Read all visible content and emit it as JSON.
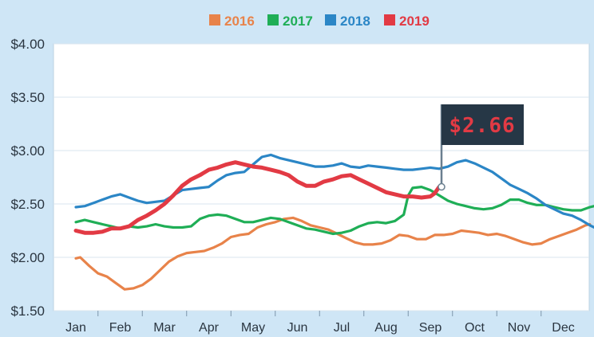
{
  "chart_data": {
    "type": "line",
    "title": "",
    "xlabel": "",
    "ylabel": "",
    "categories": [
      "Jan",
      "Feb",
      "Mar",
      "Apr",
      "May",
      "Jun",
      "Jul",
      "Aug",
      "Sep",
      "Oct",
      "Nov",
      "Dec"
    ],
    "yticks": [
      "$4.00",
      "$3.50",
      "$3.00",
      "$2.50",
      "$2.00",
      "$1.50"
    ],
    "ylim": [
      1.5,
      4.0
    ],
    "grid": "horizontal",
    "legend_position": "top-center",
    "callout": {
      "label": "$2.66",
      "series": "2019",
      "value": 2.66
    },
    "series": [
      {
        "name": "2016",
        "color": "#e8834a",
        "points": [
          [
            0,
            1.99
          ],
          [
            0.1,
            2.0
          ],
          [
            0.3,
            1.92
          ],
          [
            0.5,
            1.85
          ],
          [
            0.7,
            1.82
          ],
          [
            0.9,
            1.76
          ],
          [
            1.1,
            1.7
          ],
          [
            1.3,
            1.71
          ],
          [
            1.5,
            1.74
          ],
          [
            1.7,
            1.8
          ],
          [
            1.9,
            1.88
          ],
          [
            2.1,
            1.96
          ],
          [
            2.3,
            2.01
          ],
          [
            2.5,
            2.04
          ],
          [
            2.7,
            2.05
          ],
          [
            2.9,
            2.06
          ],
          [
            3.1,
            2.09
          ],
          [
            3.3,
            2.13
          ],
          [
            3.5,
            2.19
          ],
          [
            3.7,
            2.21
          ],
          [
            3.9,
            2.22
          ],
          [
            4.1,
            2.28
          ],
          [
            4.3,
            2.31
          ],
          [
            4.5,
            2.33
          ],
          [
            4.7,
            2.36
          ],
          [
            4.9,
            2.37
          ],
          [
            5.1,
            2.34
          ],
          [
            5.3,
            2.3
          ],
          [
            5.5,
            2.28
          ],
          [
            5.7,
            2.26
          ],
          [
            5.9,
            2.22
          ],
          [
            6.1,
            2.18
          ],
          [
            6.3,
            2.14
          ],
          [
            6.5,
            2.12
          ],
          [
            6.7,
            2.12
          ],
          [
            6.9,
            2.13
          ],
          [
            7.1,
            2.16
          ],
          [
            7.3,
            2.21
          ],
          [
            7.5,
            2.2
          ],
          [
            7.7,
            2.17
          ],
          [
            7.9,
            2.17
          ],
          [
            8.1,
            2.21
          ],
          [
            8.3,
            2.21
          ],
          [
            8.5,
            2.22
          ],
          [
            8.7,
            2.25
          ],
          [
            8.9,
            2.24
          ],
          [
            9.1,
            2.23
          ],
          [
            9.3,
            2.21
          ],
          [
            9.5,
            2.22
          ],
          [
            9.7,
            2.2
          ],
          [
            9.9,
            2.17
          ],
          [
            10.1,
            2.14
          ],
          [
            10.3,
            2.12
          ],
          [
            10.5,
            2.13
          ],
          [
            10.7,
            2.17
          ],
          [
            10.9,
            2.2
          ],
          [
            11.1,
            2.23
          ],
          [
            11.3,
            2.26
          ],
          [
            11.5,
            2.3
          ],
          [
            11.6,
            2.31
          ]
        ]
      },
      {
        "name": "2017",
        "color": "#1fae56",
        "points": [
          [
            0,
            2.33
          ],
          [
            0.2,
            2.35
          ],
          [
            0.4,
            2.33
          ],
          [
            0.6,
            2.31
          ],
          [
            0.8,
            2.29
          ],
          [
            1.0,
            2.27
          ],
          [
            1.2,
            2.29
          ],
          [
            1.4,
            2.28
          ],
          [
            1.6,
            2.29
          ],
          [
            1.8,
            2.31
          ],
          [
            2.0,
            2.29
          ],
          [
            2.2,
            2.28
          ],
          [
            2.4,
            2.28
          ],
          [
            2.6,
            2.29
          ],
          [
            2.8,
            2.36
          ],
          [
            3.0,
            2.39
          ],
          [
            3.2,
            2.4
          ],
          [
            3.4,
            2.39
          ],
          [
            3.6,
            2.36
          ],
          [
            3.8,
            2.33
          ],
          [
            4.0,
            2.33
          ],
          [
            4.2,
            2.35
          ],
          [
            4.4,
            2.37
          ],
          [
            4.6,
            2.36
          ],
          [
            4.8,
            2.33
          ],
          [
            5.0,
            2.3
          ],
          [
            5.2,
            2.27
          ],
          [
            5.4,
            2.26
          ],
          [
            5.6,
            2.24
          ],
          [
            5.8,
            2.22
          ],
          [
            6.0,
            2.23
          ],
          [
            6.2,
            2.25
          ],
          [
            6.4,
            2.29
          ],
          [
            6.6,
            2.32
          ],
          [
            6.8,
            2.33
          ],
          [
            7.0,
            2.32
          ],
          [
            7.2,
            2.34
          ],
          [
            7.4,
            2.4
          ],
          [
            7.5,
            2.58
          ],
          [
            7.6,
            2.65
          ],
          [
            7.8,
            2.66
          ],
          [
            8.0,
            2.63
          ],
          [
            8.2,
            2.58
          ],
          [
            8.4,
            2.53
          ],
          [
            8.6,
            2.5
          ],
          [
            8.8,
            2.48
          ],
          [
            9.0,
            2.46
          ],
          [
            9.2,
            2.45
          ],
          [
            9.4,
            2.46
          ],
          [
            9.6,
            2.49
          ],
          [
            9.8,
            2.54
          ],
          [
            10.0,
            2.54
          ],
          [
            10.2,
            2.51
          ],
          [
            10.4,
            2.49
          ],
          [
            10.6,
            2.49
          ],
          [
            10.8,
            2.47
          ],
          [
            11.0,
            2.45
          ],
          [
            11.2,
            2.44
          ],
          [
            11.4,
            2.44
          ],
          [
            11.6,
            2.47
          ],
          [
            11.7,
            2.48
          ]
        ]
      },
      {
        "name": "2018",
        "color": "#2b86c6",
        "points": [
          [
            0,
            2.47
          ],
          [
            0.2,
            2.48
          ],
          [
            0.4,
            2.51
          ],
          [
            0.6,
            2.54
          ],
          [
            0.8,
            2.57
          ],
          [
            1.0,
            2.59
          ],
          [
            1.2,
            2.56
          ],
          [
            1.4,
            2.53
          ],
          [
            1.6,
            2.51
          ],
          [
            1.8,
            2.52
          ],
          [
            2.0,
            2.53
          ],
          [
            2.2,
            2.58
          ],
          [
            2.4,
            2.63
          ],
          [
            2.6,
            2.64
          ],
          [
            2.8,
            2.65
          ],
          [
            3.0,
            2.66
          ],
          [
            3.2,
            2.72
          ],
          [
            3.4,
            2.77
          ],
          [
            3.6,
            2.79
          ],
          [
            3.8,
            2.8
          ],
          [
            4.0,
            2.87
          ],
          [
            4.2,
            2.94
          ],
          [
            4.4,
            2.96
          ],
          [
            4.6,
            2.93
          ],
          [
            4.8,
            2.91
          ],
          [
            5.0,
            2.89
          ],
          [
            5.2,
            2.87
          ],
          [
            5.4,
            2.85
          ],
          [
            5.6,
            2.85
          ],
          [
            5.8,
            2.86
          ],
          [
            6.0,
            2.88
          ],
          [
            6.2,
            2.85
          ],
          [
            6.4,
            2.84
          ],
          [
            6.6,
            2.86
          ],
          [
            6.8,
            2.85
          ],
          [
            7.0,
            2.84
          ],
          [
            7.2,
            2.83
          ],
          [
            7.4,
            2.82
          ],
          [
            7.6,
            2.82
          ],
          [
            7.8,
            2.83
          ],
          [
            8.0,
            2.84
          ],
          [
            8.2,
            2.83
          ],
          [
            8.4,
            2.85
          ],
          [
            8.6,
            2.89
          ],
          [
            8.8,
            2.91
          ],
          [
            9.0,
            2.88
          ],
          [
            9.2,
            2.84
          ],
          [
            9.4,
            2.8
          ],
          [
            9.6,
            2.74
          ],
          [
            9.8,
            2.68
          ],
          [
            10.0,
            2.64
          ],
          [
            10.2,
            2.6
          ],
          [
            10.4,
            2.55
          ],
          [
            10.6,
            2.49
          ],
          [
            10.8,
            2.45
          ],
          [
            11.0,
            2.41
          ],
          [
            11.2,
            2.39
          ],
          [
            11.4,
            2.35
          ],
          [
            11.6,
            2.3
          ],
          [
            11.8,
            2.26
          ]
        ]
      },
      {
        "name": "2019",
        "color": "#e23a44",
        "points": [
          [
            0,
            2.25
          ],
          [
            0.2,
            2.23
          ],
          [
            0.4,
            2.23
          ],
          [
            0.6,
            2.24
          ],
          [
            0.8,
            2.27
          ],
          [
            1.0,
            2.27
          ],
          [
            1.2,
            2.29
          ],
          [
            1.4,
            2.35
          ],
          [
            1.6,
            2.39
          ],
          [
            1.8,
            2.44
          ],
          [
            2.0,
            2.5
          ],
          [
            2.2,
            2.58
          ],
          [
            2.4,
            2.67
          ],
          [
            2.6,
            2.73
          ],
          [
            2.8,
            2.77
          ],
          [
            3.0,
            2.82
          ],
          [
            3.2,
            2.84
          ],
          [
            3.4,
            2.87
          ],
          [
            3.6,
            2.89
          ],
          [
            3.8,
            2.87
          ],
          [
            4.0,
            2.85
          ],
          [
            4.2,
            2.84
          ],
          [
            4.4,
            2.82
          ],
          [
            4.6,
            2.8
          ],
          [
            4.8,
            2.77
          ],
          [
            5.0,
            2.71
          ],
          [
            5.2,
            2.67
          ],
          [
            5.4,
            2.67
          ],
          [
            5.6,
            2.71
          ],
          [
            5.8,
            2.73
          ],
          [
            6.0,
            2.76
          ],
          [
            6.2,
            2.77
          ],
          [
            6.4,
            2.73
          ],
          [
            6.6,
            2.69
          ],
          [
            6.8,
            2.65
          ],
          [
            7.0,
            2.61
          ],
          [
            7.2,
            2.59
          ],
          [
            7.4,
            2.57
          ],
          [
            7.6,
            2.57
          ],
          [
            7.8,
            2.56
          ],
          [
            8.0,
            2.57
          ],
          [
            8.1,
            2.6
          ],
          [
            8.2,
            2.66
          ]
        ]
      }
    ]
  }
}
